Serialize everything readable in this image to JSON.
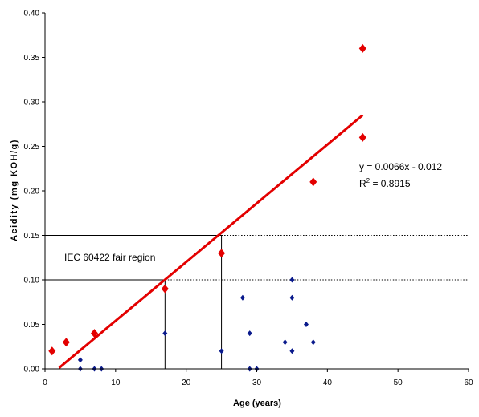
{
  "chart_data": {
    "type": "scatter",
    "title": "",
    "xlabel": "Age (years)",
    "ylabel": "Acidity (mg KOH/g)",
    "xlim": [
      0,
      60
    ],
    "ylim": [
      0,
      0.4
    ],
    "x_ticks": [
      "0",
      "10",
      "20",
      "30",
      "40",
      "50",
      "60"
    ],
    "y_ticks": [
      "0.00",
      "0.05",
      "0.10",
      "0.15",
      "0.20",
      "0.25",
      "0.30",
      "0.35",
      "0.40"
    ],
    "grid": false,
    "legend": "none",
    "series": [
      {
        "color": "#e30000",
        "marker": "diamond-large",
        "points": [
          {
            "x": 1,
            "y": 0.02
          },
          {
            "x": 3,
            "y": 0.03
          },
          {
            "x": 7,
            "y": 0.04
          },
          {
            "x": 17,
            "y": 0.09
          },
          {
            "x": 25,
            "y": 0.13
          },
          {
            "x": 38,
            "y": 0.21
          },
          {
            "x": 45,
            "y": 0.26
          },
          {
            "x": 45,
            "y": 0.36
          }
        ]
      },
      {
        "color": "#0a1a8c",
        "marker": "diamond-small",
        "points": [
          {
            "x": 5,
            "y": 0.01
          },
          {
            "x": 5,
            "y": 0.0
          },
          {
            "x": 7,
            "y": 0.0
          },
          {
            "x": 8,
            "y": 0.0
          },
          {
            "x": 17,
            "y": 0.04
          },
          {
            "x": 25,
            "y": 0.02
          },
          {
            "x": 28,
            "y": 0.08
          },
          {
            "x": 29,
            "y": 0.04
          },
          {
            "x": 29,
            "y": 0.0
          },
          {
            "x": 30,
            "y": 0.0
          },
          {
            "x": 34,
            "y": 0.03
          },
          {
            "x": 35,
            "y": 0.1
          },
          {
            "x": 35,
            "y": 0.08
          },
          {
            "x": 35,
            "y": 0.02
          },
          {
            "x": 37,
            "y": 0.05
          },
          {
            "x": 38,
            "y": 0.03
          }
        ]
      }
    ],
    "trendline": {
      "color": "#e30000",
      "slope": 0.0066,
      "intercept": -0.012,
      "x_range": [
        2,
        45
      ],
      "equation_text": "y = 0.0066x - 0.012",
      "r2_prefix": "R",
      "r2_sup": "2",
      "r2_value": " = 0.8915"
    },
    "annotations": {
      "region_label": "IEC 60422 fair region"
    },
    "reference_lines": {
      "horizontal": [
        0.1,
        0.15
      ],
      "vertical": [
        {
          "x": 17,
          "y_top": 0.1
        },
        {
          "x": 25,
          "y_top": 0.15
        }
      ]
    }
  }
}
